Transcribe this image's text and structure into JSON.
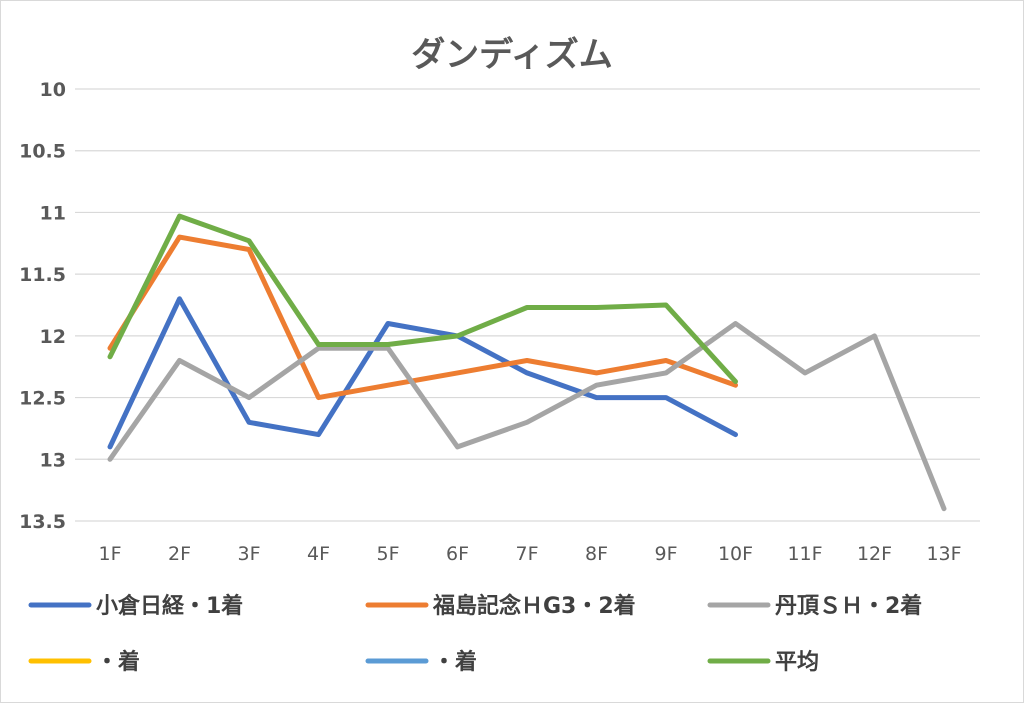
{
  "chart_data": {
    "type": "line",
    "title": "ダンディズム",
    "categories": [
      "1F",
      "2F",
      "3F",
      "4F",
      "5F",
      "6F",
      "7F",
      "8F",
      "9F",
      "10F",
      "11F",
      "12F",
      "13F"
    ],
    "y_ticks": [
      "10",
      "10.5",
      "11",
      "11.5",
      "12",
      "12.5",
      "13",
      "13.5"
    ],
    "ylim": [
      10,
      13.5
    ],
    "y_reversed": true,
    "grid": true,
    "legend_position": "bottom",
    "series": [
      {
        "name": "小倉日経・1着",
        "color": "#4472c4",
        "values": [
          12.9,
          11.7,
          12.7,
          12.8,
          11.9,
          12.0,
          12.3,
          12.5,
          12.5,
          12.8,
          null,
          null,
          null
        ]
      },
      {
        "name": "福島記念ＨG3・2着",
        "color": "#ed7d31",
        "values": [
          12.1,
          11.2,
          11.3,
          12.5,
          12.4,
          12.3,
          12.2,
          12.3,
          12.2,
          12.4,
          null,
          null,
          null
        ]
      },
      {
        "name": "丹頂ＳＨ・2着",
        "color": "#a5a5a5",
        "values": [
          13.0,
          12.2,
          12.5,
          12.1,
          12.1,
          12.9,
          12.7,
          12.4,
          12.3,
          11.9,
          12.3,
          12.0,
          13.4
        ]
      },
      {
        "name": "・着",
        "color": "#ffc000",
        "values": [
          null,
          null,
          null,
          null,
          null,
          null,
          null,
          null,
          null,
          null,
          null,
          null,
          null
        ]
      },
      {
        "name": "・着",
        "color": "#5b9bd5",
        "values": [
          null,
          null,
          null,
          null,
          null,
          null,
          null,
          null,
          null,
          null,
          null,
          null,
          null
        ]
      },
      {
        "name": "平均",
        "color": "#70ad47",
        "values": [
          12.17,
          11.03,
          11.23,
          12.07,
          12.07,
          12.0,
          11.77,
          11.77,
          11.75,
          12.37,
          null,
          null,
          null
        ]
      }
    ]
  }
}
